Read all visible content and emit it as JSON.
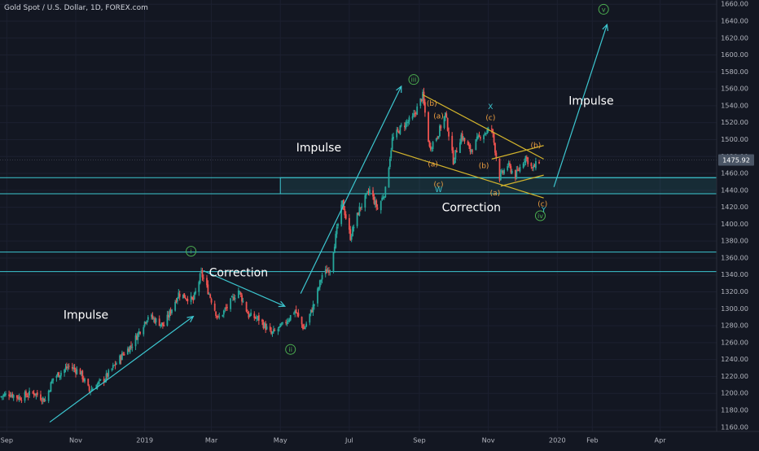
{
  "header": {
    "title": "Gold Spot / U.S. Dollar, 1D, FOREX.com"
  },
  "colors": {
    "background": "#131722",
    "grid": "#1c2030",
    "axis_text": "#b2b5be",
    "bull_candle": "#26a69a",
    "bear_candle": "#ef5350",
    "annotation_cyan": "#3cc7d0",
    "wedge_yellow": "#d4b52c",
    "wave_green": "#4caf50",
    "wave_orange": "#f0a040",
    "price_tag": "#4a5565"
  },
  "chart_data": {
    "type": "candlestick",
    "title": "Gold Spot / U.S. Dollar, 1D, FOREX.com",
    "y_axis": {
      "range": [
        1155,
        1665
      ],
      "ticks": [
        1160,
        1180,
        1200,
        1220,
        1240,
        1260,
        1280,
        1300,
        1320,
        1340,
        1360,
        1380,
        1400,
        1420,
        1440,
        1460,
        1480,
        1500,
        1520,
        1540,
        1560,
        1580,
        1600,
        1620,
        1640,
        1660
      ],
      "tick_labels": [
        "1160.00",
        "1180.00",
        "1200.00",
        "1220.00",
        "1240.00",
        "1260.00",
        "1280.00",
        "1300.00",
        "1320.00",
        "1340.00",
        "1360.00",
        "1380.00",
        "1400.00",
        "1420.00",
        "1440.00",
        "1460.00",
        "1480.00",
        "1500.00",
        "1520.00",
        "1540.00",
        "1560.00",
        "1580.00",
        "1600.00",
        "1620.00",
        "1640.00",
        "1660.00"
      ]
    },
    "x_axis": {
      "range": [
        "2018-08-26",
        "2020-05-21"
      ],
      "ticks": [
        {
          "date": "2018-09-01",
          "label": "Sep"
        },
        {
          "date": "2018-11-01",
          "label": "Nov"
        },
        {
          "date": "2019-01-01",
          "label": "2019"
        },
        {
          "date": "2019-03-01",
          "label": "Mar"
        },
        {
          "date": "2019-05-01",
          "label": "May"
        },
        {
          "date": "2019-07-01",
          "label": "Jul"
        },
        {
          "date": "2019-09-01",
          "label": "Sep"
        },
        {
          "date": "2019-11-01",
          "label": "Nov"
        },
        {
          "date": "2020-01-01",
          "label": "2020"
        },
        {
          "date": "2020-02-01",
          "label": "Feb"
        },
        {
          "date": "2020-04-01",
          "label": "Apr"
        }
      ]
    },
    "last_price": {
      "value": 1475.92,
      "label": "1475.92"
    },
    "price_path": [
      [
        "2018-08-26",
        1196
      ],
      [
        "2018-09-03",
        1200
      ],
      [
        "2018-09-12",
        1195
      ],
      [
        "2018-09-25",
        1201
      ],
      [
        "2018-10-05",
        1192
      ],
      [
        "2018-10-12",
        1218
      ],
      [
        "2018-10-26",
        1232
      ],
      [
        "2018-11-05",
        1225
      ],
      [
        "2018-11-13",
        1203
      ],
      [
        "2018-11-27",
        1218
      ],
      [
        "2018-12-12",
        1245
      ],
      [
        "2018-12-21",
        1258
      ],
      [
        "2019-01-04",
        1292
      ],
      [
        "2019-01-18",
        1280
      ],
      [
        "2019-01-31",
        1318
      ],
      [
        "2019-02-13",
        1310
      ],
      [
        "2019-02-20",
        1342
      ],
      [
        "2019-02-27",
        1318
      ],
      [
        "2019-03-07",
        1288
      ],
      [
        "2019-03-15",
        1302
      ],
      [
        "2019-03-25",
        1322
      ],
      [
        "2019-04-03",
        1292
      ],
      [
        "2019-04-12",
        1288
      ],
      [
        "2019-04-23",
        1270
      ],
      [
        "2019-05-03",
        1280
      ],
      [
        "2019-05-14",
        1298
      ],
      [
        "2019-05-22",
        1276
      ],
      [
        "2019-05-31",
        1306
      ],
      [
        "2019-06-07",
        1340
      ],
      [
        "2019-06-14",
        1348
      ],
      [
        "2019-06-21",
        1400
      ],
      [
        "2019-06-25",
        1425
      ],
      [
        "2019-07-02",
        1385
      ],
      [
        "2019-07-10",
        1418
      ],
      [
        "2019-07-19",
        1440
      ],
      [
        "2019-07-26",
        1418
      ],
      [
        "2019-08-02",
        1440
      ],
      [
        "2019-08-08",
        1500
      ],
      [
        "2019-08-16",
        1515
      ],
      [
        "2019-08-26",
        1525
      ],
      [
        "2019-09-04",
        1552
      ],
      [
        "2019-09-10",
        1490
      ],
      [
        "2019-09-17",
        1505
      ],
      [
        "2019-09-24",
        1530
      ],
      [
        "2019-10-01",
        1475
      ],
      [
        "2019-10-08",
        1505
      ],
      [
        "2019-10-16",
        1487
      ],
      [
        "2019-10-25",
        1505
      ],
      [
        "2019-11-04",
        1513
      ],
      [
        "2019-11-11",
        1455
      ],
      [
        "2019-11-18",
        1470
      ],
      [
        "2019-11-25",
        1457
      ],
      [
        "2019-12-04",
        1480
      ],
      [
        "2019-12-10",
        1465
      ],
      [
        "2019-12-16",
        1475
      ]
    ],
    "horizontal_lines": [
      1367,
      1344,
      1455,
      1436
    ],
    "zone_boxes": [
      {
        "label": "support-zone",
        "from_date": "2019-05-01",
        "to_date": "2020-05-21",
        "top": 1455,
        "bottom": 1436
      }
    ],
    "trendlines": [
      {
        "name": "wedge-upper",
        "from": [
          "2019-09-04",
          1553
        ],
        "to": [
          "2019-12-20",
          1477
        ]
      },
      {
        "name": "wedge-lower",
        "from": [
          "2019-08-08",
          1487
        ],
        "to": [
          "2019-12-20",
          1431
        ]
      },
      {
        "name": "channel-upper",
        "from": [
          "2019-11-04",
          1477
        ],
        "to": [
          "2019-12-20",
          1493
        ]
      },
      {
        "name": "channel-lower",
        "from": [
          "2019-11-12",
          1445
        ],
        "to": [
          "2019-12-20",
          1458
        ]
      }
    ],
    "arrows": [
      {
        "from": [
          "2018-10-09",
          1166
        ],
        "to": [
          "2019-02-13",
          1291
        ]
      },
      {
        "from": [
          "2019-02-22",
          1345
        ],
        "to": [
          "2019-05-05",
          1303
        ]
      },
      {
        "from": [
          "2019-05-19",
          1318
        ],
        "to": [
          "2019-08-16",
          1563
        ]
      },
      {
        "from": [
          "2019-12-29",
          1444
        ],
        "to": [
          "2020-02-14",
          1636
        ]
      }
    ],
    "text_annotations": [
      {
        "text": "Impulse",
        "date": "2018-11-10",
        "value": 1292
      },
      {
        "text": "Correction",
        "date": "2019-03-25",
        "value": 1342
      },
      {
        "text": "Impulse",
        "date": "2019-06-04",
        "value": 1490
      },
      {
        "text": "Correction",
        "date": "2019-10-17",
        "value": 1419
      },
      {
        "text": "Impulse",
        "date": "2020-01-31",
        "value": 1545
      }
    ],
    "wave_labels": [
      {
        "text": "i",
        "date": "2019-02-11",
        "value": 1368,
        "color": "green",
        "circled": true
      },
      {
        "text": "ii",
        "date": "2019-05-10",
        "value": 1252,
        "color": "green",
        "circled": true
      },
      {
        "text": "iii",
        "date": "2019-08-27",
        "value": 1571,
        "color": "green",
        "circled": true
      },
      {
        "text": "iv",
        "date": "2019-12-17",
        "value": 1410,
        "color": "green",
        "circled": true
      },
      {
        "text": "v",
        "date": "2020-02-11",
        "value": 1654,
        "color": "green",
        "circled": true
      },
      {
        "text": "(b)",
        "date": "2019-09-12",
        "value": 1543,
        "color": "orange",
        "circled": false
      },
      {
        "text": "(a)",
        "date": "2019-09-18",
        "value": 1528,
        "color": "orange",
        "circled": false
      },
      {
        "text": "(a)",
        "date": "2019-09-13",
        "value": 1471,
        "color": "orange",
        "circled": false
      },
      {
        "text": "(c)",
        "date": "2019-09-18",
        "value": 1447,
        "color": "orange",
        "circled": false
      },
      {
        "text": "W",
        "date": "2019-09-18",
        "value": 1441,
        "color": "cyan",
        "circled": false
      },
      {
        "text": "X",
        "date": "2019-11-03",
        "value": 1539,
        "color": "cyan",
        "circled": false
      },
      {
        "text": "(c)",
        "date": "2019-11-03",
        "value": 1526,
        "color": "orange",
        "circled": false
      },
      {
        "text": "(b)",
        "date": "2019-10-28",
        "value": 1469,
        "color": "orange",
        "circled": false
      },
      {
        "text": "(a)",
        "date": "2019-11-07",
        "value": 1437,
        "color": "orange",
        "circled": false
      },
      {
        "text": "(b)",
        "date": "2019-12-13",
        "value": 1493,
        "color": "orange",
        "circled": false
      },
      {
        "text": "(c)",
        "date": "2019-12-19",
        "value": 1424,
        "color": "orange",
        "circled": false
      },
      {
        "text": "Y",
        "date": "2019-12-20",
        "value": 1417,
        "color": "cyan",
        "circled": false
      }
    ]
  }
}
